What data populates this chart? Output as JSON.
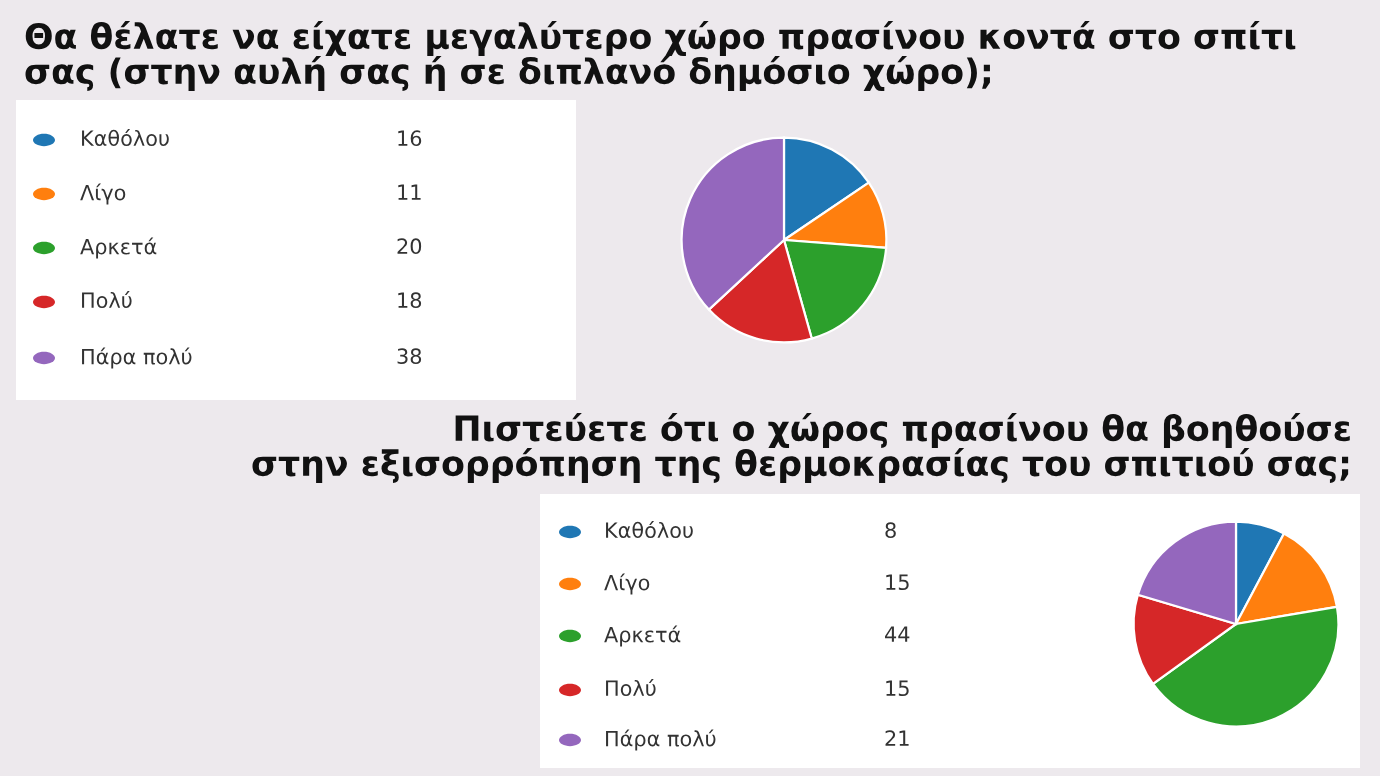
{
  "chart_data": [
    {
      "type": "pie",
      "title": "Θα θέλατε να είχατε μεγαλύτερο χώρο πρασίνου κοντά στο σπίτι\nσας (στην αυλή σας ή σε διπλανό δημόσιο χώρο);",
      "categories": [
        "Καθόλου",
        "Λίγο",
        "Αρκετά",
        "Πολύ",
        "Πάρα πολύ"
      ],
      "values": [
        16,
        11,
        20,
        18,
        38
      ],
      "colors": [
        "#1f77b4",
        "#ff7f0e",
        "#2ca02c",
        "#d62728",
        "#9467bd"
      ],
      "legend": "left",
      "data_labels": true
    },
    {
      "type": "pie",
      "title": "Πιστεύετε ότι ο χώρος πρασίνου θα βοηθούσε\nστην εξισορρόπηση της θερμοκρασίας του σπιτιού σας;",
      "categories": [
        "Καθόλου",
        "Λίγο",
        "Αρκετά",
        "Πολύ",
        "Πάρα πολύ"
      ],
      "values": [
        8,
        15,
        44,
        15,
        21
      ],
      "colors": [
        "#1f77b4",
        "#ff7f0e",
        "#2ca02c",
        "#d62728",
        "#9467bd"
      ],
      "legend": "left",
      "data_labels": true
    }
  ]
}
